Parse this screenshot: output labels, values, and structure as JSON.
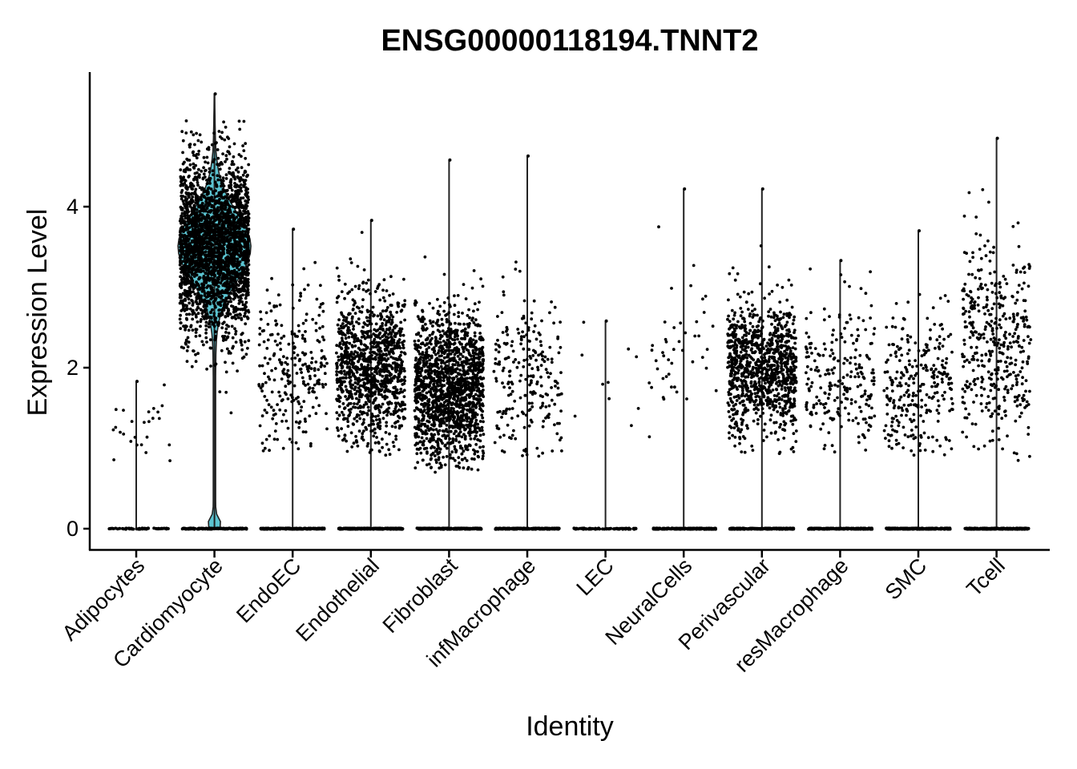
{
  "chart_data": {
    "type": "violin",
    "title": "ENSG00000118194.TNNT2",
    "xlabel": "Identity",
    "ylabel": "Expression Level",
    "ylim": [
      -0.27,
      5.6
    ],
    "yticks": [
      0,
      2,
      4
    ],
    "fill_color": "#5bc4d1",
    "point_color": "#000000",
    "categories": [
      "Adipocytes",
      "Cardiomyocyte",
      "EndoEC",
      "Endothelial",
      "Fibroblast",
      "infMacrophage",
      "LEC",
      "NeuralCells",
      "Perivascular",
      "resMacrophage",
      "SMC",
      "Tcell"
    ],
    "groups": [
      {
        "name": "Adipocytes",
        "max": 1.83,
        "center": 1.2,
        "spread": 0.3,
        "lo": 0.8,
        "hi": 1.83,
        "n_expr": 25,
        "n_zero": 60
      },
      {
        "name": "Cardiomyocyte",
        "max": 5.4,
        "center": 3.5,
        "spread": 0.55,
        "lo": 0.6,
        "hi": 5.1,
        "n_expr": 2600,
        "n_zero": 120
      },
      {
        "name": "EndoEC",
        "max": 3.72,
        "center": 2.0,
        "spread": 0.55,
        "lo": 0.95,
        "hi": 3.72,
        "n_expr": 260,
        "n_zero": 200
      },
      {
        "name": "Endothelial",
        "max": 3.83,
        "center": 2.0,
        "spread": 0.45,
        "lo": 0.9,
        "hi": 3.83,
        "n_expr": 1100,
        "n_zero": 260
      },
      {
        "name": "Fibroblast",
        "max": 4.58,
        "center": 1.75,
        "spread": 0.45,
        "lo": 0.7,
        "hi": 4.58,
        "n_expr": 1600,
        "n_zero": 260
      },
      {
        "name": "infMacrophage",
        "max": 4.63,
        "center": 1.9,
        "spread": 0.55,
        "lo": 0.85,
        "hi": 4.63,
        "n_expr": 230,
        "n_zero": 220
      },
      {
        "name": "LEC",
        "max": 2.58,
        "center": 1.7,
        "spread": 0.5,
        "lo": 1.2,
        "hi": 2.58,
        "n_expr": 10,
        "n_zero": 80
      },
      {
        "name": "NeuralCells",
        "max": 4.22,
        "center": 2.2,
        "spread": 0.5,
        "lo": 0.8,
        "hi": 4.22,
        "n_expr": 45,
        "n_zero": 220
      },
      {
        "name": "Perivascular",
        "max": 4.22,
        "center": 2.0,
        "spread": 0.4,
        "lo": 0.9,
        "hi": 4.22,
        "n_expr": 1050,
        "n_zero": 240
      },
      {
        "name": "resMacrophage",
        "max": 3.33,
        "center": 1.9,
        "spread": 0.5,
        "lo": 0.9,
        "hi": 3.33,
        "n_expr": 230,
        "n_zero": 220
      },
      {
        "name": "SMC",
        "max": 3.7,
        "center": 1.8,
        "spread": 0.45,
        "lo": 0.9,
        "hi": 3.7,
        "n_expr": 280,
        "n_zero": 240
      },
      {
        "name": "Tcell",
        "max": 4.85,
        "center": 2.3,
        "spread": 0.6,
        "lo": 0.8,
        "hi": 4.85,
        "n_expr": 420,
        "n_zero": 240
      }
    ]
  }
}
